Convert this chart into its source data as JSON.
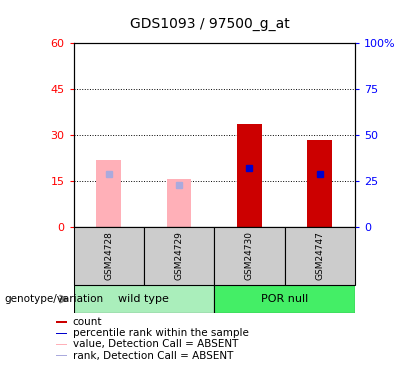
{
  "title": "GDS1093 / 97500_g_at",
  "samples": [
    "GSM24728",
    "GSM24729",
    "GSM24730",
    "GSM24747"
  ],
  "count_absent": [
    22,
    15.5,
    0,
    0
  ],
  "count_present": [
    0,
    0,
    33.5,
    28.5
  ],
  "rank_absent": [
    29,
    23,
    0,
    0
  ],
  "rank_present": [
    0,
    0,
    32,
    29
  ],
  "ylim_left": [
    0,
    60
  ],
  "ylim_right": [
    0,
    100
  ],
  "yticks_left": [
    0,
    15,
    30,
    45,
    60
  ],
  "yticks_right": [
    0,
    25,
    50,
    75,
    100
  ],
  "yticklabels_right": [
    "0",
    "25",
    "50",
    "75",
    "100%"
  ],
  "bar_width": 0.35,
  "absent_bar_color": "#FFB0B8",
  "absent_rank_color": "#AAAADD",
  "present_bar_color": "#CC0000",
  "present_rank_color": "#0000CC",
  "group1_color": "#AAEEBB",
  "group2_color": "#44EE66",
  "sample_bg": "#CCCCCC",
  "legend_items": [
    "count",
    "percentile rank within the sample",
    "value, Detection Call = ABSENT",
    "rank, Detection Call = ABSENT"
  ],
  "legend_colors": [
    "#CC0000",
    "#0000CC",
    "#FFB0B8",
    "#AAAADD"
  ],
  "figsize": [
    4.2,
    3.75
  ],
  "dpi": 100
}
